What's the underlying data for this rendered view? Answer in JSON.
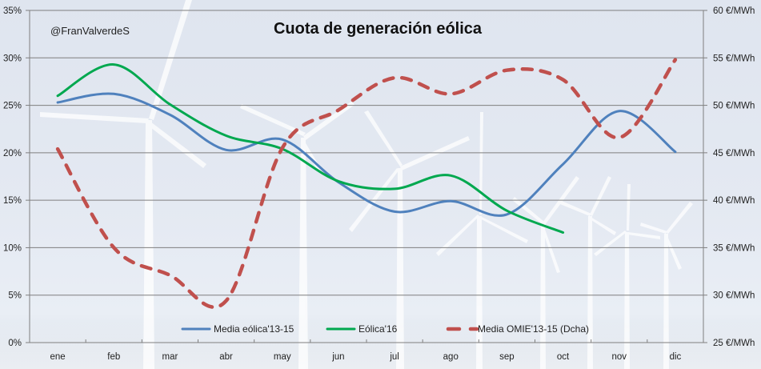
{
  "chart_data": {
    "type": "line",
    "title": "Cuota de generación eólica",
    "annotation": "@FranValverdeS",
    "xlabel": "",
    "ylabel": "",
    "y2label": "",
    "categories": [
      "ene",
      "feb",
      "mar",
      "abr",
      "may",
      "jun",
      "jul",
      "ago",
      "sep",
      "oct",
      "nov",
      "dic"
    ],
    "ylim": [
      0,
      35
    ],
    "y_ticks": [
      0,
      5,
      10,
      15,
      20,
      25,
      30,
      35
    ],
    "y_tick_labels": [
      "0%",
      "5%",
      "10%",
      "15%",
      "20%",
      "25%",
      "30%",
      "35%"
    ],
    "y2lim": [
      25,
      60
    ],
    "y2_ticks": [
      25,
      30,
      35,
      40,
      45,
      50,
      55,
      60
    ],
    "y2_tick_labels": [
      "25 €/MWh",
      "30 €/MWh",
      "35 €/MWh",
      "40 €/MWh",
      "45 €/MWh",
      "50 €/MWh",
      "55 €/MWh",
      "60 €/MWh"
    ],
    "grid": true,
    "legend_position": "bottom",
    "series": [
      {
        "name": "Media eólica'13-15",
        "axis": "left",
        "color": "#4f81bd",
        "style": "solid",
        "values": [
          25.3,
          26.2,
          24.0,
          20.3,
          21.4,
          16.9,
          13.8,
          14.9,
          13.5,
          18.8,
          24.4,
          20.1
        ]
      },
      {
        "name": "Eólica'16",
        "axis": "left",
        "color": "#00a84f",
        "style": "solid",
        "values": [
          26.0,
          29.3,
          25.1,
          21.8,
          20.4,
          17.0,
          16.2,
          17.6,
          13.9,
          11.6,
          null,
          null
        ]
      },
      {
        "name": "Media OMIE'13-15 (Dcha)",
        "axis": "right",
        "color": "#c0504d",
        "style": "dashed",
        "values": [
          45.4,
          35.0,
          32.1,
          29.4,
          45.5,
          49.5,
          52.9,
          51.2,
          53.7,
          52.7,
          46.6,
          54.8
        ]
      }
    ]
  }
}
